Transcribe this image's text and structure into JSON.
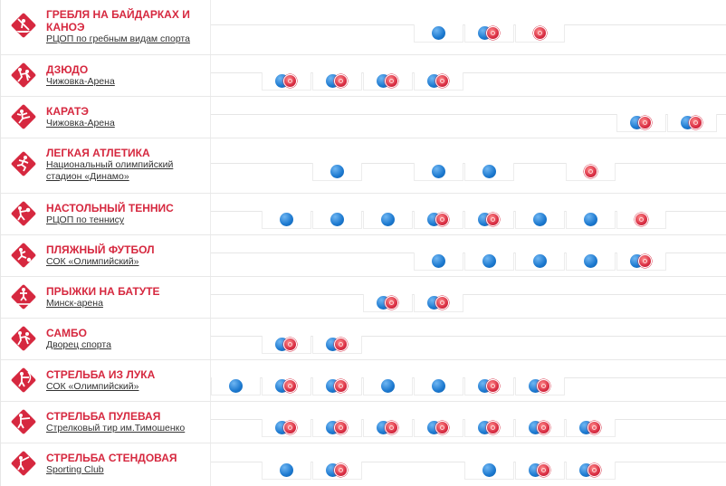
{
  "colors": {
    "accent": "#d6283f",
    "competition": "#1b78cf",
    "medal": "#d6283f"
  },
  "legend_meaning": {
    "blue": "competition day",
    "medal": "medal event"
  },
  "sports": [
    {
      "name": "ГРЕБЛЯ НА БАЙДАРКАХ И КАНОЭ",
      "venue": "РЦОП по гребным видам спорта",
      "icon": "canoe-sprint-icon",
      "days": [
        null,
        null,
        null,
        null,
        "c",
        "cm",
        "m",
        null,
        null,
        null
      ]
    },
    {
      "name": "ДЗЮДО",
      "venue": "Чижовка-Арена",
      "icon": "judo-icon",
      "days": [
        null,
        "cm",
        "cm",
        "cm",
        "cm",
        null,
        null,
        null,
        null,
        null
      ]
    },
    {
      "name": "КАРАТЭ",
      "venue": "Чижовка-Арена",
      "icon": "karate-icon",
      "days": [
        null,
        null,
        null,
        null,
        null,
        null,
        null,
        null,
        "cm",
        "cm"
      ]
    },
    {
      "name": "ЛЕГКАЯ АТЛЕТИКА",
      "venue": "Национальный олимпийский стадион «Динамо»",
      "icon": "athletics-icon",
      "days": [
        null,
        null,
        "c",
        null,
        "c",
        "c",
        null,
        "m",
        null,
        null
      ]
    },
    {
      "name": "НАСТОЛЬНЫЙ ТЕННИС",
      "venue": "РЦОП по теннису",
      "icon": "table-tennis-icon",
      "days": [
        null,
        "c",
        "c",
        "c",
        "cm",
        "cm",
        "c",
        "c",
        "m",
        null
      ]
    },
    {
      "name": "ПЛЯЖНЫЙ ФУТБОЛ",
      "venue": "СОК «Олимпийский»",
      "icon": "beach-soccer-icon",
      "days": [
        null,
        null,
        null,
        null,
        "c",
        "c",
        "c",
        "c",
        "cm",
        null
      ]
    },
    {
      "name": "ПРЫЖКИ НА БАТУТЕ",
      "venue": "Минск-арена",
      "icon": "trampoline-icon",
      "days": [
        null,
        null,
        null,
        "cm",
        "cm",
        null,
        null,
        null,
        null,
        null
      ]
    },
    {
      "name": "САМБО",
      "venue": "Дворец спорта",
      "icon": "sambo-icon",
      "days": [
        null,
        "cm",
        "cm",
        null,
        null,
        null,
        null,
        null,
        null,
        null
      ]
    },
    {
      "name": "СТРЕЛЬБА ИЗ ЛУКА",
      "venue": "СОК «Олимпийский»",
      "icon": "archery-icon",
      "days": [
        "c",
        "cm",
        "cm",
        "c",
        "c",
        "cm",
        "cm",
        null,
        null,
        null
      ]
    },
    {
      "name": "СТРЕЛЬБА ПУЛЕВАЯ",
      "venue": "Стрелковый тир им.Тимошенко",
      "icon": "shooting-rifle-icon",
      "days": [
        null,
        "cm",
        "cm",
        "cm",
        "cm",
        "cm",
        "cm",
        "cm",
        null,
        null
      ]
    },
    {
      "name": "СТРЕЛЬБА СТЕНДОВАЯ",
      "venue": "Sporting Club",
      "icon": "shooting-shotgun-icon",
      "days": [
        null,
        "c",
        "cm",
        null,
        null,
        "c",
        "cm",
        "cm",
        null,
        null
      ]
    }
  ]
}
